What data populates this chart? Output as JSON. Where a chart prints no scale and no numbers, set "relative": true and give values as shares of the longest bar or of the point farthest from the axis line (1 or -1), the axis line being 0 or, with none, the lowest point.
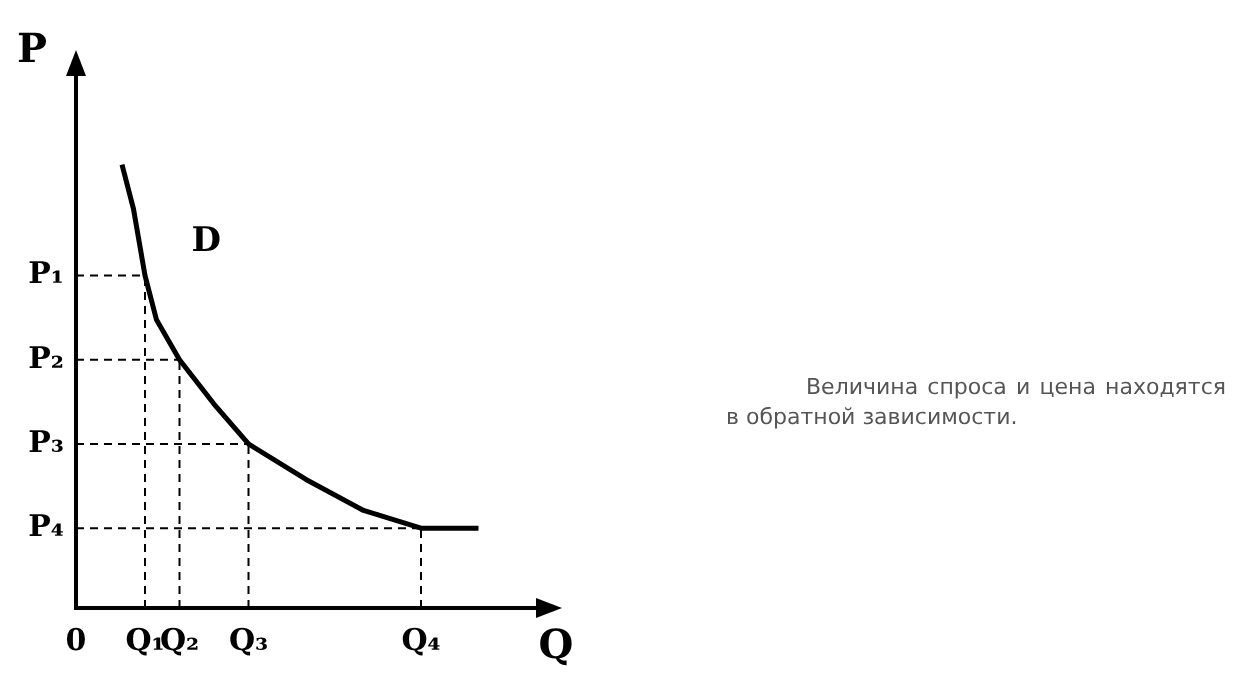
{
  "chart_data": {
    "type": "line",
    "relative": true,
    "xlabel": "Q",
    "ylabel": "P",
    "categories": [
      "0",
      null,
      null,
      null,
      null,
      null,
      "Q₁",
      null,
      null,
      "Q₂",
      null,
      null,
      null,
      null,
      null,
      "Q₃",
      null,
      null,
      null,
      null,
      null,
      null,
      null,
      null,
      null,
      null,
      null,
      null,
      null,
      null,
      "Q₄",
      null,
      null,
      null,
      null,
      null,
      null,
      null,
      null,
      null,
      null
    ],
    "grid": false,
    "legend": false,
    "marker": "none",
    "line_style": "solid",
    "series": [
      {
        "name": "D",
        "color": "#000000",
        "values": [
          null,
          null,
          null,
          null,
          1,
          0.9,
          0.75,
          0.65,
          null,
          0.56,
          null,
          null,
          0.46,
          null,
          null,
          0.37,
          null,
          null,
          null,
          null,
          0.29,
          null,
          null,
          null,
          null,
          0.22,
          null,
          null,
          null,
          null,
          0.18,
          null,
          null,
          null,
          null,
          0.18,
          null,
          null,
          null,
          null,
          null
        ]
      }
    ],
    "ref_lines": [
      {
        "axis": "y",
        "value": 0.75,
        "label": "P₁",
        "color": "#000000",
        "line_style": "dashed"
      },
      {
        "axis": "y",
        "value": 0.56,
        "label": "P₂",
        "color": "#000000",
        "line_style": "dashed"
      },
      {
        "axis": "y",
        "value": 0.37,
        "label": "P₃",
        "color": "#000000",
        "line_style": "dashed"
      },
      {
        "axis": "y",
        "value": 0.18,
        "label": "P₄",
        "color": "#000000",
        "line_style": "dashed"
      },
      {
        "axis": "x",
        "value": "Q₁",
        "color": "#000000",
        "line_style": "dashed"
      },
      {
        "axis": "x",
        "value": "Q₂",
        "color": "#000000",
        "line_style": "dashed"
      },
      {
        "axis": "x",
        "value": "Q₃",
        "color": "#000000",
        "line_style": "dashed"
      },
      {
        "axis": "x",
        "value": "Q₄",
        "color": "#000000",
        "line_style": "dashed"
      }
    ],
    "annotations": [
      "Величина спроса и цена находятся в обратной зависимости."
    ]
  }
}
